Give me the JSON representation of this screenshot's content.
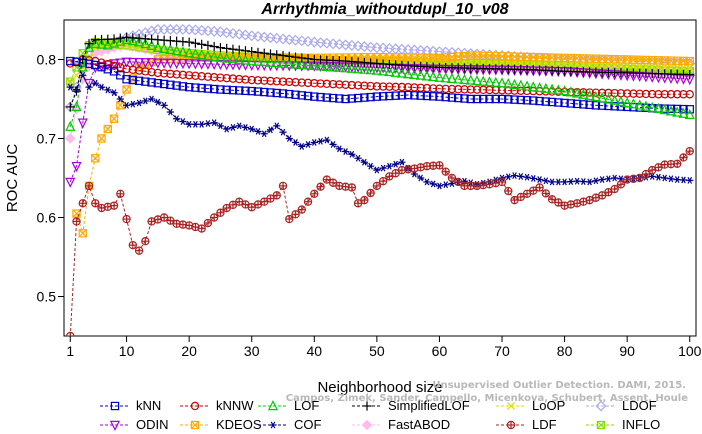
{
  "chart_data": {
    "type": "line",
    "title": "Arrhythmia_withoutdupl_10_v08",
    "xlabel": "Neighborhood size",
    "ylabel": "ROC AUC",
    "xlim": [
      0,
      101
    ],
    "ylim": [
      0.45,
      0.85
    ],
    "x_ticks": [
      1,
      10,
      20,
      30,
      40,
      50,
      60,
      70,
      80,
      90,
      100
    ],
    "y_ticks": [
      0.5,
      0.6,
      0.7,
      0.8
    ],
    "grid": false,
    "legend_position": "bottom",
    "watermark": [
      "Campos, Zimek, Sander, Campello, Micenkova, Schubert, Assent, Houle",
      "Unsupervised Outlier Detection. DAMI, 2015."
    ],
    "series": [
      {
        "name": "kNN",
        "color": "#0000cc",
        "marker": "square",
        "points": [
          [
            1,
            0.798
          ],
          [
            3,
            0.796
          ],
          [
            5,
            0.793
          ],
          [
            8,
            0.785
          ],
          [
            10,
            0.775
          ],
          [
            15,
            0.77
          ],
          [
            20,
            0.765
          ],
          [
            25,
            0.762
          ],
          [
            30,
            0.76
          ],
          [
            35,
            0.757
          ],
          [
            40,
            0.753
          ],
          [
            45,
            0.75
          ],
          [
            50,
            0.753
          ],
          [
            55,
            0.755
          ],
          [
            60,
            0.753
          ],
          [
            65,
            0.75
          ],
          [
            70,
            0.75
          ],
          [
            75,
            0.748
          ],
          [
            80,
            0.745
          ],
          [
            85,
            0.742
          ],
          [
            90,
            0.74
          ],
          [
            95,
            0.738
          ],
          [
            100,
            0.737
          ]
        ]
      },
      {
        "name": "kNNW",
        "color": "#cc0000",
        "marker": "circle",
        "points": [
          [
            1,
            0.795
          ],
          [
            3,
            0.8
          ],
          [
            5,
            0.798
          ],
          [
            8,
            0.792
          ],
          [
            10,
            0.788
          ],
          [
            15,
            0.783
          ],
          [
            20,
            0.78
          ],
          [
            25,
            0.777
          ],
          [
            30,
            0.774
          ],
          [
            35,
            0.772
          ],
          [
            40,
            0.77
          ],
          [
            45,
            0.768
          ],
          [
            50,
            0.766
          ],
          [
            55,
            0.765
          ],
          [
            60,
            0.763
          ],
          [
            65,
            0.762
          ],
          [
            70,
            0.761
          ],
          [
            75,
            0.76
          ],
          [
            80,
            0.759
          ],
          [
            85,
            0.758
          ],
          [
            90,
            0.757
          ],
          [
            95,
            0.756
          ],
          [
            100,
            0.756
          ]
        ]
      },
      {
        "name": "LOF",
        "color": "#00cc00",
        "marker": "triangle-up",
        "points": [
          [
            1,
            0.715
          ],
          [
            2,
            0.74
          ],
          [
            3,
            0.79
          ],
          [
            4,
            0.815
          ],
          [
            5,
            0.82
          ],
          [
            7,
            0.818
          ],
          [
            10,
            0.825
          ],
          [
            12,
            0.822
          ],
          [
            15,
            0.815
          ],
          [
            20,
            0.808
          ],
          [
            25,
            0.802
          ],
          [
            30,
            0.798
          ],
          [
            40,
            0.792
          ],
          [
            50,
            0.786
          ],
          [
            60,
            0.777
          ],
          [
            70,
            0.77
          ],
          [
            80,
            0.76
          ],
          [
            90,
            0.745
          ],
          [
            100,
            0.73
          ]
        ]
      },
      {
        "name": "SimplifiedLOF",
        "color": "#000000",
        "marker": "plus",
        "points": [
          [
            1,
            0.74
          ],
          [
            2,
            0.76
          ],
          [
            3,
            0.8
          ],
          [
            4,
            0.82
          ],
          [
            5,
            0.825
          ],
          [
            8,
            0.826
          ],
          [
            10,
            0.828
          ],
          [
            15,
            0.825
          ],
          [
            20,
            0.822
          ],
          [
            25,
            0.815
          ],
          [
            30,
            0.81
          ],
          [
            35,
            0.805
          ],
          [
            40,
            0.8
          ],
          [
            45,
            0.798
          ],
          [
            50,
            0.795
          ],
          [
            55,
            0.792
          ],
          [
            60,
            0.79
          ],
          [
            65,
            0.789
          ],
          [
            70,
            0.788
          ],
          [
            75,
            0.787
          ],
          [
            80,
            0.785
          ],
          [
            85,
            0.784
          ],
          [
            90,
            0.783
          ],
          [
            95,
            0.782
          ],
          [
            100,
            0.781
          ]
        ]
      },
      {
        "name": "LoOP",
        "color": "#dddd00",
        "marker": "x",
        "points": [
          [
            1,
            0.77
          ],
          [
            3,
            0.79
          ],
          [
            5,
            0.815
          ],
          [
            8,
            0.82
          ],
          [
            10,
            0.818
          ],
          [
            15,
            0.812
          ],
          [
            20,
            0.808
          ],
          [
            30,
            0.804
          ],
          [
            40,
            0.8
          ],
          [
            50,
            0.8
          ],
          [
            60,
            0.798
          ],
          [
            70,
            0.796
          ],
          [
            80,
            0.795
          ],
          [
            90,
            0.793
          ],
          [
            100,
            0.79
          ]
        ]
      },
      {
        "name": "LDOF",
        "color": "#aaaaee",
        "marker": "diamond",
        "points": [
          [
            1,
            0.74
          ],
          [
            3,
            0.79
          ],
          [
            5,
            0.81
          ],
          [
            8,
            0.82
          ],
          [
            10,
            0.828
          ],
          [
            15,
            0.838
          ],
          [
            20,
            0.838
          ],
          [
            25,
            0.835
          ],
          [
            30,
            0.83
          ],
          [
            40,
            0.822
          ],
          [
            50,
            0.815
          ],
          [
            60,
            0.81
          ],
          [
            70,
            0.805
          ],
          [
            80,
            0.8
          ],
          [
            90,
            0.798
          ],
          [
            100,
            0.795
          ]
        ]
      },
      {
        "name": "ODIN",
        "color": "#aa00dd",
        "marker": "triangle-down",
        "points": [
          [
            1,
            0.645
          ],
          [
            2,
            0.665
          ],
          [
            3,
            0.72
          ],
          [
            4,
            0.77
          ],
          [
            5,
            0.79
          ],
          [
            8,
            0.795
          ],
          [
            10,
            0.797
          ],
          [
            15,
            0.796
          ],
          [
            20,
            0.795
          ],
          [
            30,
            0.793
          ],
          [
            40,
            0.792
          ],
          [
            50,
            0.79
          ],
          [
            60,
            0.788
          ],
          [
            70,
            0.787
          ],
          [
            80,
            0.785
          ],
          [
            90,
            0.78
          ],
          [
            100,
            0.775
          ]
        ]
      },
      {
        "name": "KDEOS",
        "color": "#ffaa00",
        "marker": "square-x",
        "points": [
          [
            2,
            0.605
          ],
          [
            3,
            0.58
          ],
          [
            4,
            0.64
          ],
          [
            5,
            0.675
          ],
          [
            6,
            0.7
          ],
          [
            7,
            0.712
          ],
          [
            8,
            0.725
          ],
          [
            9,
            0.742
          ],
          [
            10,
            0.762
          ],
          [
            12,
            0.79
          ],
          [
            15,
            0.8
          ],
          [
            20,
            0.802
          ],
          [
            30,
            0.803
          ],
          [
            40,
            0.802
          ],
          [
            50,
            0.803
          ],
          [
            60,
            0.802
          ],
          [
            65,
            0.805
          ],
          [
            70,
            0.804
          ],
          [
            80,
            0.802
          ],
          [
            90,
            0.8
          ],
          [
            100,
            0.798
          ]
        ]
      },
      {
        "name": "COF",
        "color": "#000088",
        "marker": "asterisk",
        "points": [
          [
            1,
            0.765
          ],
          [
            2,
            0.762
          ],
          [
            3,
            0.78
          ],
          [
            4,
            0.765
          ],
          [
            5,
            0.77
          ],
          [
            6,
            0.765
          ],
          [
            8,
            0.758
          ],
          [
            10,
            0.742
          ],
          [
            12,
            0.745
          ],
          [
            14,
            0.75
          ],
          [
            16,
            0.742
          ],
          [
            18,
            0.725
          ],
          [
            20,
            0.718
          ],
          [
            22,
            0.718
          ],
          [
            24,
            0.72
          ],
          [
            26,
            0.712
          ],
          [
            28,
            0.716
          ],
          [
            30,
            0.712
          ],
          [
            32,
            0.706
          ],
          [
            34,
            0.716
          ],
          [
            36,
            0.7
          ],
          [
            38,
            0.69
          ],
          [
            40,
            0.695
          ],
          [
            42,
            0.698
          ],
          [
            44,
            0.687
          ],
          [
            46,
            0.68
          ],
          [
            48,
            0.67
          ],
          [
            50,
            0.66
          ],
          [
            52,
            0.665
          ],
          [
            54,
            0.67
          ],
          [
            56,
            0.655
          ],
          [
            58,
            0.645
          ],
          [
            60,
            0.64
          ],
          [
            62,
            0.643
          ],
          [
            64,
            0.646
          ],
          [
            66,
            0.642
          ],
          [
            68,
            0.645
          ],
          [
            70,
            0.65
          ],
          [
            72,
            0.653
          ],
          [
            74,
            0.651
          ],
          [
            76,
            0.648
          ],
          [
            78,
            0.645
          ],
          [
            80,
            0.645
          ],
          [
            82,
            0.646
          ],
          [
            84,
            0.645
          ],
          [
            86,
            0.648
          ],
          [
            88,
            0.65
          ],
          [
            90,
            0.648
          ],
          [
            92,
            0.65
          ],
          [
            94,
            0.652
          ],
          [
            96,
            0.65
          ],
          [
            98,
            0.648
          ],
          [
            100,
            0.647
          ]
        ]
      },
      {
        "name": "FastABOD",
        "color": "#ffbbee",
        "marker": "diamond-filled",
        "points": [
          [
            1,
            0.7
          ],
          [
            3,
            0.775
          ],
          [
            5,
            0.808
          ],
          [
            8,
            0.815
          ],
          [
            10,
            0.818
          ],
          [
            15,
            0.81
          ],
          [
            20,
            0.805
          ],
          [
            30,
            0.8
          ],
          [
            40,
            0.798
          ],
          [
            50,
            0.796
          ],
          [
            60,
            0.793
          ],
          [
            70,
            0.79
          ],
          [
            80,
            0.788
          ],
          [
            90,
            0.785
          ],
          [
            100,
            0.782
          ]
        ]
      },
      {
        "name": "LDF",
        "color": "#aa2222",
        "marker": "circle-plus",
        "points": [
          [
            1,
            0.45
          ],
          [
            2,
            0.595
          ],
          [
            3,
            0.618
          ],
          [
            4,
            0.64
          ],
          [
            5,
            0.618
          ],
          [
            6,
            0.612
          ],
          [
            8,
            0.615
          ],
          [
            9,
            0.63
          ],
          [
            10,
            0.598
          ],
          [
            11,
            0.565
          ],
          [
            12,
            0.558
          ],
          [
            13,
            0.57
          ],
          [
            14,
            0.595
          ],
          [
            16,
            0.6
          ],
          [
            18,
            0.592
          ],
          [
            20,
            0.59
          ],
          [
            22,
            0.586
          ],
          [
            24,
            0.6
          ],
          [
            26,
            0.612
          ],
          [
            28,
            0.62
          ],
          [
            30,
            0.613
          ],
          [
            32,
            0.62
          ],
          [
            34,
            0.628
          ],
          [
            35,
            0.64
          ],
          [
            36,
            0.598
          ],
          [
            38,
            0.61
          ],
          [
            40,
            0.63
          ],
          [
            42,
            0.648
          ],
          [
            44,
            0.64
          ],
          [
            46,
            0.638
          ],
          [
            47,
            0.618
          ],
          [
            48,
            0.622
          ],
          [
            50,
            0.64
          ],
          [
            52,
            0.652
          ],
          [
            54,
            0.66
          ],
          [
            56,
            0.662
          ],
          [
            58,
            0.665
          ],
          [
            60,
            0.666
          ],
          [
            62,
            0.65
          ],
          [
            64,
            0.64
          ],
          [
            66,
            0.64
          ],
          [
            68,
            0.642
          ],
          [
            70,
            0.645
          ],
          [
            72,
            0.622
          ],
          [
            74,
            0.63
          ],
          [
            76,
            0.638
          ],
          [
            78,
            0.623
          ],
          [
            80,
            0.615
          ],
          [
            82,
            0.618
          ],
          [
            84,
            0.622
          ],
          [
            86,
            0.628
          ],
          [
            88,
            0.636
          ],
          [
            90,
            0.648
          ],
          [
            92,
            0.65
          ],
          [
            94,
            0.66
          ],
          [
            96,
            0.667
          ],
          [
            98,
            0.668
          ],
          [
            100,
            0.684
          ]
        ]
      },
      {
        "name": "INFLO",
        "color": "#88dd00",
        "marker": "square-x",
        "points": [
          [
            1,
            0.772
          ],
          [
            2,
            0.79
          ],
          [
            3,
            0.808
          ],
          [
            4,
            0.818
          ],
          [
            5,
            0.822
          ],
          [
            7,
            0.82
          ],
          [
            10,
            0.818
          ],
          [
            15,
            0.812
          ],
          [
            20,
            0.808
          ],
          [
            25,
            0.805
          ],
          [
            30,
            0.803
          ],
          [
            40,
            0.8
          ],
          [
            50,
            0.798
          ],
          [
            60,
            0.796
          ],
          [
            70,
            0.794
          ],
          [
            80,
            0.791
          ],
          [
            90,
            0.788
          ],
          [
            100,
            0.785
          ]
        ]
      }
    ]
  }
}
